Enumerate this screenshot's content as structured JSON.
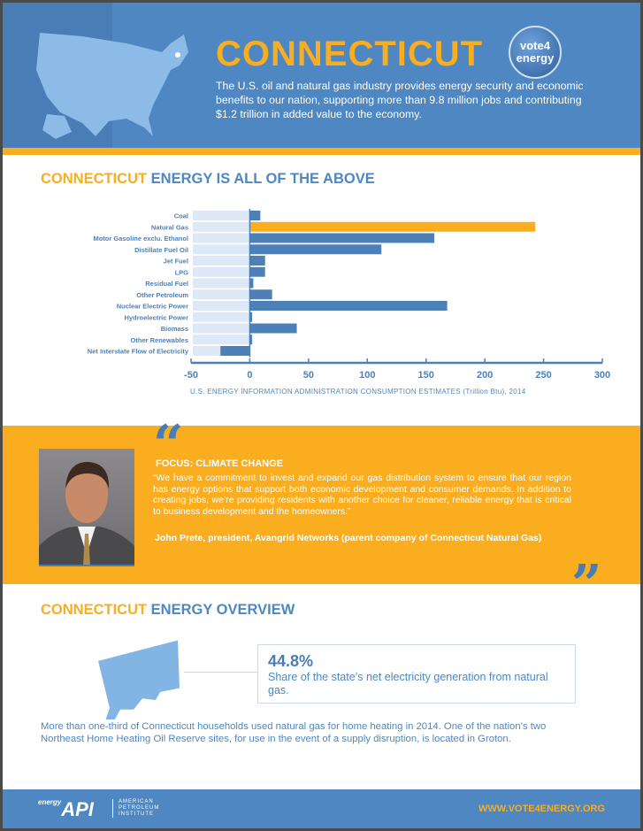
{
  "header": {
    "title": "CONNECTICUT",
    "badge_top": "vote4",
    "badge_bottom": "energy",
    "intro": "The U.S. oil and natural gas industry provides energy security and economic benefits to our nation, supporting more than 9.8 million jobs and contributing $1.2 trillion in added value to the economy."
  },
  "section1": {
    "state": "CONNECTICUT",
    "rest": "ENERGY IS ALL OF THE ABOVE"
  },
  "chart_data": {
    "type": "bar",
    "orientation": "horizontal",
    "categories": [
      "Coal",
      "Natural Gas",
      "Motor Gasoline exclu. Ethanol",
      "Distillate Fuel Oil",
      "Jet Fuel",
      "LPG",
      "Residual Fuel",
      "Other Petroleum",
      "Nuclear Electric Power",
      "Hydroelectric Power",
      "Biomass",
      "Other Renewables",
      "Net Interstate Flow of Electricity"
    ],
    "values": [
      9,
      243,
      157,
      112,
      13,
      13,
      3,
      19,
      168,
      2,
      40,
      2,
      -25
    ],
    "highlight": "Natural Gas",
    "xlim": [
      -50,
      300
    ],
    "xticks": [
      -50,
      0,
      50,
      100,
      150,
      200,
      250,
      300
    ],
    "xlabel": "U.S. ENERGY INFORMATION ADMINISTRATION CONSUMPTION ESTIMATES (Trillion Btu), 2014",
    "colors": {
      "bar": "#4e80b8",
      "highlight": "#f9ad1f",
      "background": "#dde9f6"
    }
  },
  "quote": {
    "focus": "FOCUS: CLIMATE CHANGE",
    "text": "“We have a commitment to invest and expand our gas distribution system to ensure that our region has energy options that support both economic development and consumer demands. In addition to creating jobs, we’re providing residents with another choice for cleaner, reliable energy that is critical to business development and the homeowners.”",
    "attribution": "John Prete, president, Avangrid Networks (parent company of Connecticut Natural Gas)",
    "open_mark": "“",
    "close_mark": "”"
  },
  "section2": {
    "state": "CONNECTICUT",
    "rest": "ENERGY OVERVIEW"
  },
  "stat": {
    "value": "44.8%",
    "desc": "Share of the state’s net electricity generation from natural gas."
  },
  "overview": "More than one-third of Connecticut households used natural gas for home heating in 2014. One of the nation’s two Northeast Home Heating Oil Reserve sites, for use in the event of a supply disruption, is located in Groton.",
  "footer": {
    "logo_small": "energy",
    "logo": "API",
    "org_line1": "AMERICAN",
    "org_line2": "PETROLEUM",
    "org_line3": "INSTITUTE",
    "url": "WWW.VOTE4ENERGY.ORG"
  }
}
